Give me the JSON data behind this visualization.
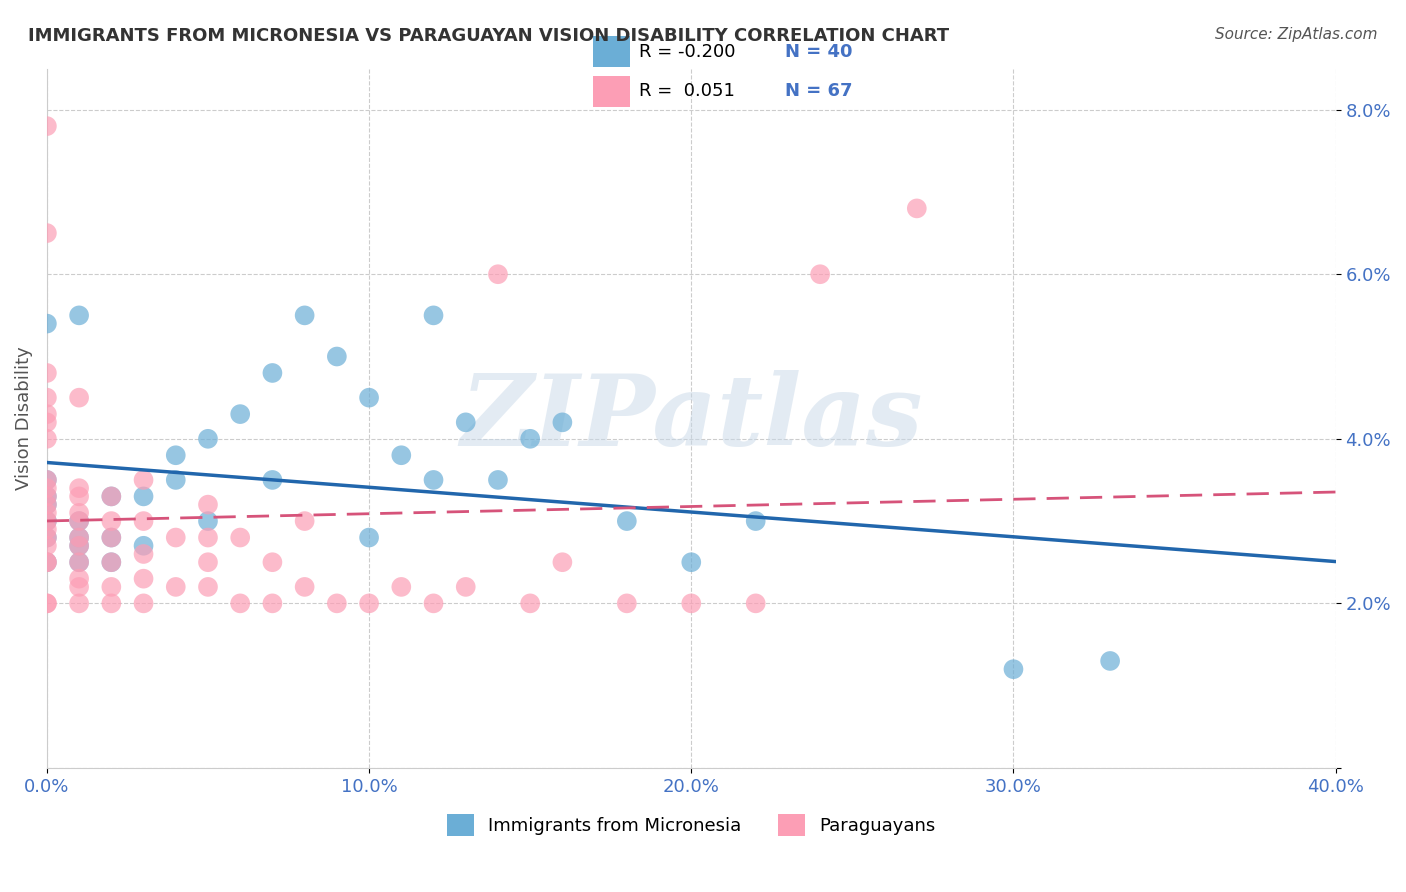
{
  "title": "IMMIGRANTS FROM MICRONESIA VS PARAGUAYAN VISION DISABILITY CORRELATION CHART",
  "source": "Source: ZipAtlas.com",
  "ylabel": "Vision Disability",
  "xlabel": "",
  "watermark": "ZIPatlas",
  "xlim": [
    0.0,
    0.4
  ],
  "ylim": [
    0.0,
    0.085
  ],
  "xticks": [
    0.0,
    0.1,
    0.2,
    0.3,
    0.4
  ],
  "yticks": [
    0.0,
    0.02,
    0.04,
    0.06,
    0.08
  ],
  "xticklabels": [
    "0.0%",
    "10.0%",
    "20.0%",
    "30.0%",
    "40.0%"
  ],
  "yticklabels": [
    "",
    "2.0%",
    "4.0%",
    "6.0%",
    "8.0%"
  ],
  "legend_r1": "R = -0.200",
  "legend_n1": "N = 40",
  "legend_r2": "R =  0.051",
  "legend_n2": "N = 67",
  "blue_color": "#6baed6",
  "pink_color": "#fc9eb5",
  "blue_line_color": "#2166ac",
  "pink_line_color": "#d6537a",
  "title_color": "#333333",
  "source_color": "#555555",
  "tick_color": "#4472c4",
  "watermark_color": "#c8d8e8",
  "blue_scatter_x": [
    0.0,
    0.0,
    0.0,
    0.0,
    0.0,
    0.0,
    0.0,
    0.01,
    0.01,
    0.01,
    0.01,
    0.01,
    0.02,
    0.02,
    0.02,
    0.03,
    0.03,
    0.04,
    0.04,
    0.05,
    0.05,
    0.06,
    0.07,
    0.07,
    0.08,
    0.09,
    0.1,
    0.1,
    0.11,
    0.12,
    0.12,
    0.13,
    0.14,
    0.15,
    0.16,
    0.18,
    0.2,
    0.22,
    0.3,
    0.33
  ],
  "blue_scatter_y": [
    0.025,
    0.028,
    0.03,
    0.032,
    0.033,
    0.035,
    0.054,
    0.025,
    0.027,
    0.028,
    0.03,
    0.055,
    0.025,
    0.028,
    0.033,
    0.027,
    0.033,
    0.035,
    0.038,
    0.03,
    0.04,
    0.043,
    0.035,
    0.048,
    0.055,
    0.05,
    0.028,
    0.045,
    0.038,
    0.055,
    0.035,
    0.042,
    0.035,
    0.04,
    0.042,
    0.03,
    0.025,
    0.03,
    0.012,
    0.013
  ],
  "pink_scatter_x": [
    0.0,
    0.0,
    0.0,
    0.0,
    0.0,
    0.0,
    0.0,
    0.0,
    0.0,
    0.0,
    0.0,
    0.0,
    0.0,
    0.0,
    0.0,
    0.0,
    0.0,
    0.0,
    0.0,
    0.0,
    0.01,
    0.01,
    0.01,
    0.01,
    0.01,
    0.01,
    0.01,
    0.01,
    0.01,
    0.01,
    0.01,
    0.02,
    0.02,
    0.02,
    0.02,
    0.02,
    0.02,
    0.03,
    0.03,
    0.03,
    0.03,
    0.03,
    0.04,
    0.04,
    0.05,
    0.05,
    0.05,
    0.05,
    0.06,
    0.06,
    0.07,
    0.07,
    0.08,
    0.08,
    0.09,
    0.1,
    0.11,
    0.12,
    0.13,
    0.14,
    0.15,
    0.16,
    0.18,
    0.2,
    0.22,
    0.24,
    0.27
  ],
  "pink_scatter_y": [
    0.02,
    0.02,
    0.025,
    0.025,
    0.027,
    0.028,
    0.029,
    0.03,
    0.031,
    0.032,
    0.033,
    0.034,
    0.035,
    0.04,
    0.042,
    0.043,
    0.045,
    0.048,
    0.065,
    0.078,
    0.02,
    0.022,
    0.023,
    0.025,
    0.027,
    0.028,
    0.03,
    0.031,
    0.033,
    0.034,
    0.045,
    0.02,
    0.022,
    0.025,
    0.028,
    0.03,
    0.033,
    0.02,
    0.023,
    0.026,
    0.03,
    0.035,
    0.022,
    0.028,
    0.022,
    0.025,
    0.028,
    0.032,
    0.02,
    0.028,
    0.02,
    0.025,
    0.022,
    0.03,
    0.02,
    0.02,
    0.022,
    0.02,
    0.022,
    0.06,
    0.02,
    0.025,
    0.02,
    0.02,
    0.02,
    0.06,
    0.068
  ]
}
